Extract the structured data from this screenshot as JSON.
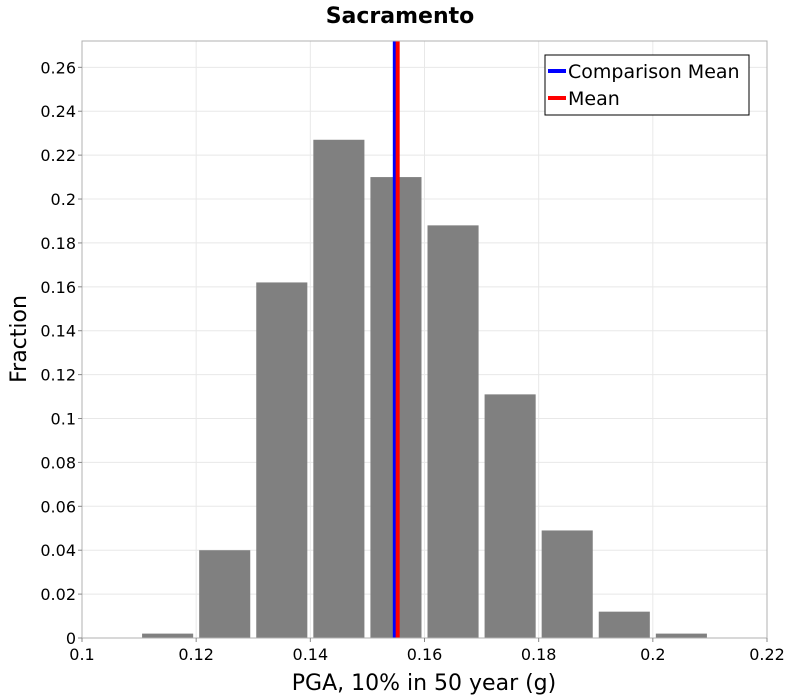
{
  "chart_data": {
    "type": "bar",
    "title": "Sacramento",
    "xlabel": "PGA, 10% in 50 year (g)",
    "ylabel": "Fraction",
    "xlim": [
      0.1,
      0.22
    ],
    "ylim": [
      0,
      0.272
    ],
    "x_ticks": [
      0.1,
      0.12,
      0.14,
      0.16,
      0.18,
      0.2,
      0.22
    ],
    "x_tick_labels": [
      "0.1",
      "0.12",
      "0.14",
      "0.16",
      "0.18",
      "0.2",
      "0.22"
    ],
    "y_ticks": [
      0,
      0.02,
      0.04,
      0.06,
      0.08,
      0.1,
      0.12,
      0.14,
      0.16,
      0.18,
      0.2,
      0.22,
      0.24,
      0.26
    ],
    "y_tick_labels": [
      "0",
      "0.02",
      "0.04",
      "0.06",
      "0.08",
      "0.1",
      "0.12",
      "0.14",
      "0.16",
      "0.18",
      "0.2",
      "0.22",
      "0.24",
      "0.26"
    ],
    "bin_width": 0.01,
    "bins": [
      {
        "center": 0.115,
        "value": 0.002
      },
      {
        "center": 0.125,
        "value": 0.04
      },
      {
        "center": 0.135,
        "value": 0.162
      },
      {
        "center": 0.145,
        "value": 0.227
      },
      {
        "center": 0.155,
        "value": 0.21
      },
      {
        "center": 0.165,
        "value": 0.188
      },
      {
        "center": 0.175,
        "value": 0.111
      },
      {
        "center": 0.185,
        "value": 0.049
      },
      {
        "center": 0.195,
        "value": 0.012
      },
      {
        "center": 0.205,
        "value": 0.002
      }
    ],
    "vertical_lines": [
      {
        "name": "Comparison Mean",
        "x": 0.1548,
        "color": "#0000ff"
      },
      {
        "name": "Mean",
        "x": 0.1553,
        "color": "#ff0000"
      }
    ],
    "legend": {
      "entries": [
        "Comparison Mean",
        "Mean"
      ],
      "placement": "top-right"
    },
    "grid": true,
    "colors": {
      "bar": "#808080",
      "grid": "#e8e8e8",
      "frame": "#b0b0b0"
    }
  }
}
